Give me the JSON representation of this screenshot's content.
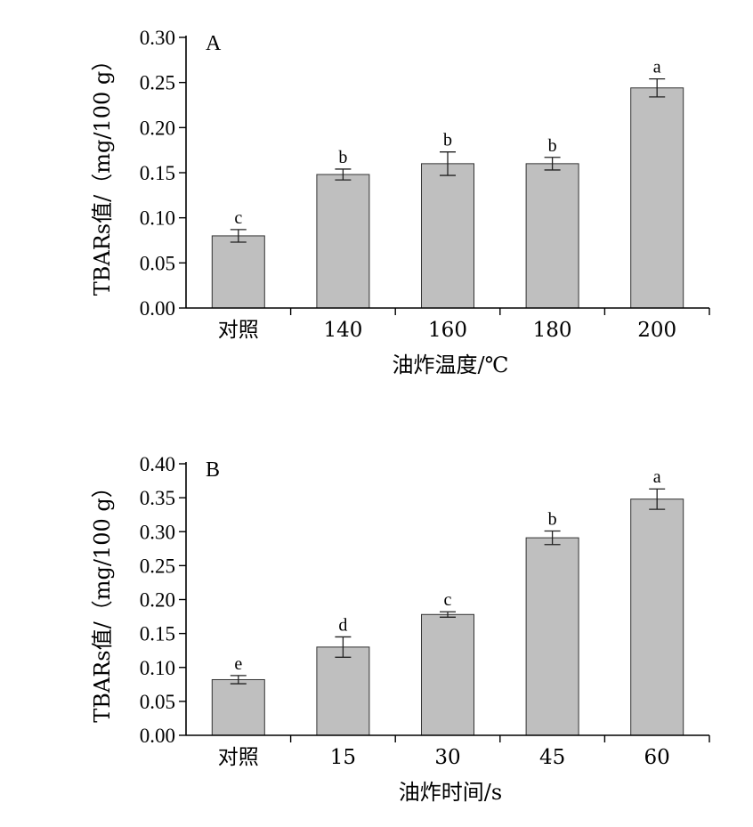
{
  "chart_data": [
    {
      "type": "bar",
      "panel_label": "A",
      "categories": [
        "对照",
        "140",
        "160",
        "180",
        "200"
      ],
      "values": [
        0.08,
        0.148,
        0.16,
        0.16,
        0.244
      ],
      "errors": [
        0.007,
        0.006,
        0.013,
        0.007,
        0.01
      ],
      "significance": [
        "c",
        "b",
        "b",
        "b",
        "a"
      ],
      "xlabel": "油炸温度/℃",
      "ylabel": "TBARs值/（mg/100 g）",
      "ylim": [
        0,
        0.3
      ],
      "yticks": [
        "0.00",
        "0.05",
        "0.10",
        "0.15",
        "0.20",
        "0.25",
        "0.30"
      ],
      "bar_color": "#bfbfbf",
      "grid": false
    },
    {
      "type": "bar",
      "panel_label": "B",
      "categories": [
        "对照",
        "15",
        "30",
        "45",
        "60"
      ],
      "values": [
        0.082,
        0.13,
        0.178,
        0.291,
        0.348
      ],
      "errors": [
        0.006,
        0.015,
        0.004,
        0.01,
        0.015
      ],
      "significance": [
        "e",
        "d",
        "c",
        "b",
        "a"
      ],
      "xlabel": "油炸时间/s",
      "ylabel": "TBARs值/（mg/100 g）",
      "ylim": [
        0,
        0.4
      ],
      "yticks": [
        "0.00",
        "0.05",
        "0.10",
        "0.15",
        "0.20",
        "0.25",
        "0.30",
        "0.35",
        "0.40"
      ],
      "bar_color": "#bfbfbf",
      "grid": false
    }
  ]
}
